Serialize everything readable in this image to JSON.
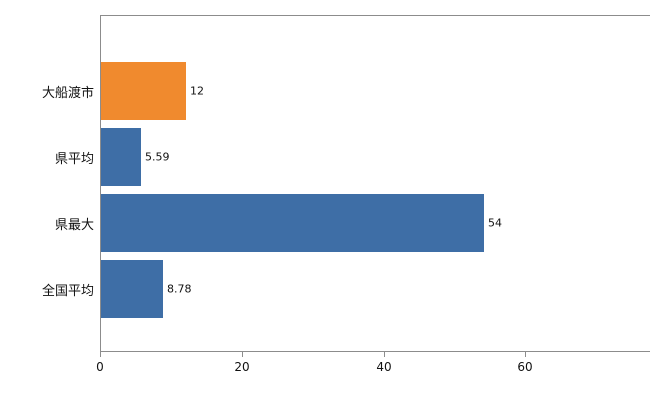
{
  "chart_data": {
    "type": "bar",
    "orientation": "horizontal",
    "title": "",
    "xlabel": "",
    "ylabel": "",
    "categories": [
      "大船渡市",
      "県平均",
      "県最大",
      "全国平均"
    ],
    "values": [
      12,
      5.59,
      54,
      8.78
    ],
    "value_labels": [
      "12",
      "5.59",
      "54",
      "8.78"
    ],
    "bar_colors": [
      "#f08a2e",
      "#3e6ea6",
      "#3e6ea6",
      "#3e6ea6"
    ],
    "highlight_color": "#f08a2e",
    "series_color": "#3e6ea6",
    "xlim": [
      0,
      78
    ],
    "x_ticks": [
      0,
      20,
      40,
      60
    ],
    "x_tick_labels": [
      "0",
      "20",
      "40",
      "60"
    ],
    "grid": false,
    "legend": "none",
    "axis_color": "#8c8c8c",
    "text_color": "#111111",
    "background": "#ffffff"
  }
}
